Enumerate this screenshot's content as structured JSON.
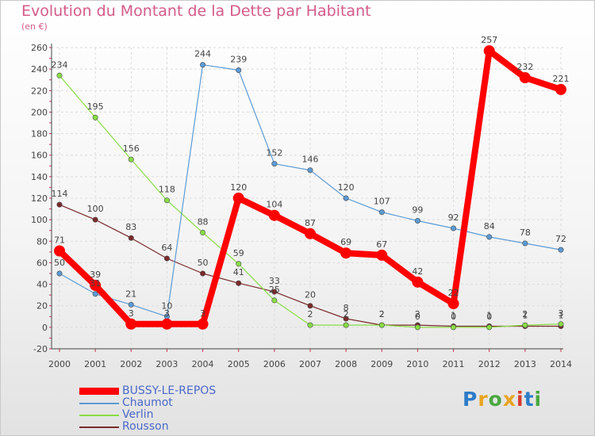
{
  "title": "Evolution du Montant de la Dette par Habitant",
  "unit": "(en €)",
  "logo": {
    "text": "Proxiti",
    "colors": [
      "#2c7cc8",
      "#e8a520",
      "#4aa840",
      "#e8a520",
      "#d63a2a",
      "#2c7cc8",
      "#4aa840"
    ]
  },
  "chart_data": {
    "type": "line",
    "x": [
      "2000",
      "2001",
      "2002",
      "2003",
      "2004",
      "2005",
      "2006",
      "2007",
      "2008",
      "2009",
      "2010",
      "2011",
      "2012",
      "2013",
      "2014"
    ],
    "yticks": [
      -20,
      0,
      20,
      40,
      60,
      80,
      100,
      120,
      140,
      160,
      180,
      200,
      220,
      240,
      260
    ],
    "ylim": [
      -20,
      260
    ],
    "grid": true,
    "legend_position": "bottom-left",
    "series": [
      {
        "name": "BUSSY-LE-REPOS",
        "color": "#ff0000",
        "labels": [
          "71",
          "39",
          "3",
          "3",
          "3",
          "120",
          "104",
          "87",
          "69",
          "67",
          "42",
          "22",
          "257",
          "232",
          "221"
        ],
        "values": [
          71,
          39,
          3,
          3,
          3,
          120,
          104,
          87,
          69,
          67,
          42,
          22,
          257,
          232,
          221
        ]
      },
      {
        "name": "Chaumot",
        "color": "#5b9bd5",
        "labels": [
          "50",
          "31",
          "21",
          "10",
          "244",
          "239",
          "152",
          "146",
          "120",
          "107",
          "99",
          "92",
          "84",
          "78",
          "72"
        ],
        "values": [
          50,
          31,
          21,
          10,
          244,
          239,
          152,
          146,
          120,
          107,
          99,
          92,
          84,
          78,
          72
        ]
      },
      {
        "name": "Verlin",
        "color": "#88dd44",
        "labels": [
          "234",
          "195",
          "156",
          "118",
          "88",
          "59",
          "25",
          "2",
          "2",
          "2",
          "0",
          "0",
          "0",
          "2",
          "3"
        ],
        "values": [
          234,
          195,
          156,
          118,
          88,
          59,
          25,
          2,
          2,
          2,
          0,
          0,
          0,
          2,
          3
        ]
      },
      {
        "name": "Rousson",
        "color": "#7a2a2a",
        "labels": [
          "114",
          "100",
          "83",
          "64",
          "50",
          "41",
          "33",
          "20",
          "8",
          "2",
          "2",
          "1",
          "1",
          "1",
          "1"
        ],
        "values": [
          114,
          100,
          83,
          64,
          50,
          41,
          33,
          20,
          8,
          2,
          2,
          1,
          1,
          1,
          1
        ]
      }
    ]
  }
}
